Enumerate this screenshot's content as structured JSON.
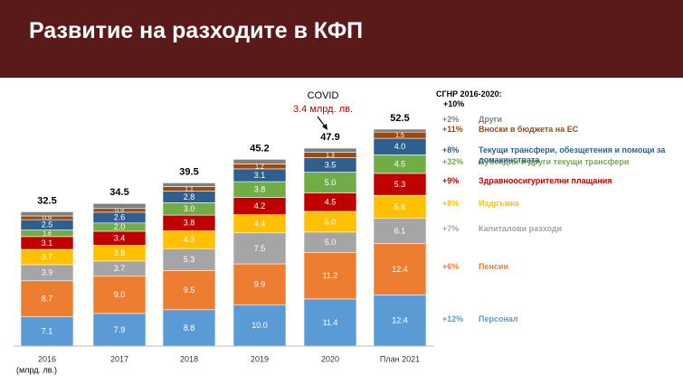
{
  "chart_data": {
    "type": "stacked_bar",
    "title": "Развитие на разходите в КФП",
    "unit_label": "(млрд. лв.)",
    "categories": [
      "2016",
      "2017",
      "2018",
      "2019",
      "2020",
      "План 2021"
    ],
    "totals": [
      32.5,
      34.5,
      39.5,
      45.2,
      47.9,
      52.5
    ],
    "growth_header": "СГНР 2016-2020:",
    "total_growth": "+10%",
    "annotation": {
      "title": "COVID",
      "text": "3.4 млрд. лв."
    },
    "series": [
      {
        "name": "Персонал",
        "growth": "+12%",
        "color": "#5b9bd5",
        "values": [
          7.1,
          7.9,
          8.8,
          10.0,
          11.4,
          12.4
        ],
        "value_labels": [
          "7.1",
          "7.9",
          "8.8",
          "10.0",
          "11.4",
          "12.4"
        ]
      },
      {
        "name": "Пенсии",
        "growth": "+6%",
        "color": "#ed7d31",
        "values": [
          8.7,
          9.0,
          9.5,
          9.9,
          11.2,
          12.4
        ],
        "value_labels": [
          "8.7",
          "9.0",
          "9.5",
          "9.9",
          "11.2",
          "12.4"
        ]
      },
      {
        "name": "Капиталови разходи",
        "growth": "+7%",
        "color": "#a5a5a5",
        "values": [
          3.9,
          3.7,
          5.3,
          7.5,
          5.0,
          6.1
        ],
        "value_labels": [
          "3.9",
          "3.7",
          "5.3",
          "7.5",
          "5.0",
          "6.1"
        ]
      },
      {
        "name": "Издръжка",
        "growth": "+8%",
        "color": "#ffc000",
        "values": [
          3.7,
          3.8,
          4.3,
          4.4,
          5.0,
          5.6
        ],
        "value_labels": [
          "3.7",
          "3.8",
          "4.3",
          "4.4",
          "5.0",
          "5.6"
        ]
      },
      {
        "name": "Здравноосигурителни плащания",
        "growth": "+9%",
        "color": "#c00000",
        "values": [
          3.1,
          3.4,
          3.8,
          4.2,
          4.5,
          5.3
        ],
        "value_labels": [
          "3.1",
          "3.4",
          "3.8",
          "4.2",
          "4.5",
          "5.3"
        ]
      },
      {
        "name": "Субсидии и други текущи трансфери",
        "growth": "+32%",
        "color": "#70ad47",
        "values": [
          1.6,
          2.0,
          3.0,
          3.8,
          5.0,
          4.5
        ],
        "value_labels": [
          "1.6",
          "2.0",
          "3.0",
          "3.8",
          "5.0",
          "4.5"
        ]
      },
      {
        "name": "Текущи трансфери, обезщетения и помощи за домакинствата",
        "growth": "+8%",
        "color": "#2e5f8e",
        "values": [
          2.5,
          2.6,
          2.8,
          3.1,
          3.5,
          4.0
        ],
        "value_labels": [
          "2.5",
          "2.6",
          "2.8",
          "3.1",
          "3.5",
          "4.0"
        ]
      },
      {
        "name": "Вноски в бюджета на ЕС",
        "growth": "+11%",
        "color": "#9e480e",
        "values": [
          0.9,
          0.9,
          1.1,
          1.2,
          1.3,
          1.5
        ],
        "value_labels": [
          "0.9",
          "0.9",
          "1.1",
          "1.2",
          "1.3",
          "1.5"
        ]
      },
      {
        "name": "Други",
        "growth": "+2%",
        "color": "#7f7f7f",
        "values": [
          1.0,
          1.2,
          0.9,
          1.1,
          1.0,
          0.7
        ]
      }
    ]
  }
}
